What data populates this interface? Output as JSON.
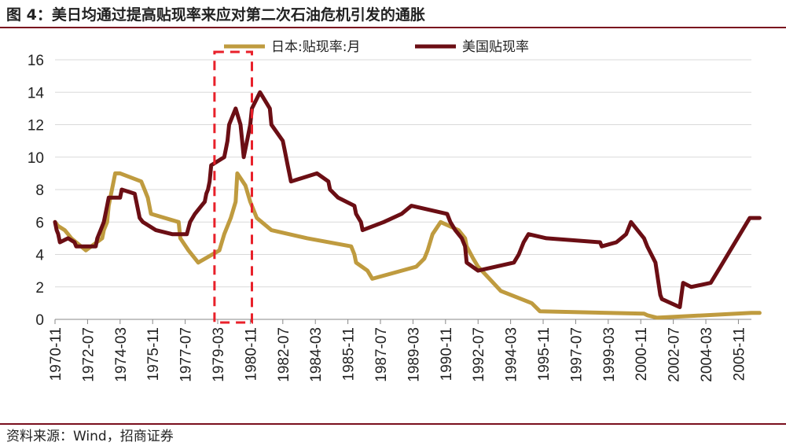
{
  "title": "图 4：美日均通过提高贴现率来应对第二次石油危机引发的通胀",
  "source": "资料来源：Wind，招商证券",
  "colors": {
    "japan": "#bf9b3f",
    "us": "#6b0e14",
    "highlight": "#e8202a",
    "rule": "#7a0f1e",
    "grid": "#d9d9d9"
  },
  "chart_data": {
    "type": "line",
    "title": "",
    "xlabel": "",
    "ylabel": "",
    "ylim": [
      0,
      16
    ],
    "yticks": [
      0,
      2,
      4,
      6,
      8,
      10,
      12,
      14,
      16
    ],
    "x_range": [
      1970.833,
      2006.5
    ],
    "x_tick_labels": [
      "1970-11",
      "1972-07",
      "1974-03",
      "1975-11",
      "1977-07",
      "1979-03",
      "1980-11",
      "1982-07",
      "1984-03",
      "1985-11",
      "1987-07",
      "1989-03",
      "1990-11",
      "1992-07",
      "1994-03",
      "1995-11",
      "1997-07",
      "1999-03",
      "2000-11",
      "2002-07",
      "2004-03",
      "2005-11"
    ],
    "grid": true,
    "legend": "top",
    "highlight_period": [
      "1979-01",
      "1980-12"
    ],
    "series": [
      {
        "name": "日本:贴现率:月",
        "color": "#bf9b3f",
        "x": [
          "1970-11",
          "1971-01",
          "1971-05",
          "1971-07",
          "1971-09",
          "1971-12",
          "1972-06",
          "1973-04",
          "1973-05",
          "1973-07",
          "1973-08",
          "1973-12",
          "1974-03",
          "1975-04",
          "1975-06",
          "1975-08",
          "1975-10",
          "1977-03",
          "1977-04",
          "1977-09",
          "1978-03",
          "1979-04",
          "1979-07",
          "1979-11",
          "1980-02",
          "1980-03",
          "1980-08",
          "1980-11",
          "1981-03",
          "1981-12",
          "1983-10",
          "1986-01",
          "1986-03",
          "1986-04",
          "1986-11",
          "1987-02",
          "1989-05",
          "1989-10",
          "1989-12",
          "1990-03",
          "1990-08",
          "1991-07",
          "1991-11",
          "1991-12",
          "1992-04",
          "1992-07",
          "1993-02",
          "1993-09",
          "1995-04",
          "1995-09",
          "2001-01",
          "2001-03",
          "2001-09",
          "2006-07",
          "2006-12"
        ],
        "values": [
          6.0,
          5.75,
          5.5,
          5.25,
          5.0,
          4.75,
          4.25,
          5.0,
          5.5,
          6.0,
          7.0,
          9.0,
          9.0,
          8.5,
          8.0,
          7.5,
          6.5,
          6.0,
          5.0,
          4.25,
          3.5,
          4.25,
          5.25,
          6.25,
          7.25,
          9.0,
          8.25,
          7.25,
          6.25,
          5.5,
          5.0,
          4.5,
          4.0,
          3.5,
          3.0,
          2.5,
          3.25,
          3.75,
          4.25,
          5.25,
          6.0,
          5.5,
          5.0,
          4.5,
          3.75,
          3.25,
          2.5,
          1.75,
          1.0,
          0.5,
          0.35,
          0.25,
          0.1,
          0.4,
          0.4
        ]
      },
      {
        "name": "美国贴现率",
        "color": "#6b0e14",
        "x": [
          "1970-11",
          "1970-12",
          "1971-01",
          "1971-02",
          "1971-07",
          "1971-11",
          "1971-12",
          "1972-12",
          "1973-01",
          "1973-03",
          "1973-05",
          "1973-07",
          "1973-08",
          "1974-03",
          "1974-04",
          "1974-12",
          "1975-01",
          "1975-02",
          "1975-03",
          "1975-05",
          "1976-01",
          "1976-11",
          "1977-08",
          "1977-10",
          "1978-01",
          "1978-05",
          "1978-07",
          "1978-08",
          "1978-09",
          "1978-10",
          "1978-11",
          "1979-07",
          "1979-08",
          "1979-09",
          "1979-10",
          "1980-02",
          "1980-05",
          "1980-06",
          "1980-07",
          "1980-09",
          "1980-11",
          "1980-12",
          "1981-05",
          "1981-11",
          "1981-12",
          "1982-07",
          "1982-08",
          "1982-10",
          "1982-11",
          "1982-12",
          "1984-04",
          "1984-11",
          "1984-12",
          "1985-05",
          "1986-03",
          "1986-04",
          "1986-07",
          "1986-08",
          "1987-09",
          "1988-08",
          "1989-02",
          "1990-12",
          "1991-02",
          "1991-05",
          "1991-09",
          "1991-11",
          "1991-12",
          "1992-07",
          "1994-05",
          "1994-08",
          "1994-11",
          "1995-02",
          "1996-01",
          "1998-10",
          "1998-11",
          "1999-08",
          "1999-11",
          "2000-02",
          "2000-03",
          "2000-05",
          "2001-01",
          "2001-03",
          "2001-08",
          "2001-11",
          "2001-12",
          "2002-11",
          "2003-01",
          "2003-06",
          "2004-06",
          "2004-12",
          "2005-06",
          "2005-12",
          "2006-06",
          "2006-12"
        ],
        "values": [
          6.0,
          5.5,
          5.25,
          4.75,
          5.0,
          4.75,
          4.5,
          4.5,
          5.0,
          5.5,
          6.0,
          7.0,
          7.5,
          7.5,
          8.0,
          7.75,
          7.25,
          6.75,
          6.25,
          6.0,
          5.5,
          5.25,
          5.25,
          6.0,
          6.5,
          7.0,
          7.25,
          7.75,
          8.0,
          8.5,
          9.5,
          10.0,
          10.5,
          11.0,
          12.0,
          13.0,
          12.0,
          11.0,
          10.0,
          11.0,
          12.0,
          13.0,
          14.0,
          13.0,
          12.0,
          11.0,
          10.5,
          9.5,
          9.0,
          8.5,
          9.0,
          8.5,
          8.0,
          7.5,
          7.0,
          6.5,
          6.0,
          5.5,
          6.0,
          6.5,
          7.0,
          6.5,
          6.0,
          5.5,
          5.0,
          4.5,
          3.5,
          3.0,
          3.5,
          4.0,
          4.75,
          5.25,
          5.0,
          4.75,
          4.5,
          4.75,
          5.0,
          5.25,
          5.5,
          6.0,
          5.0,
          4.5,
          3.5,
          1.5,
          1.25,
          0.75,
          2.25,
          2.0,
          2.25,
          3.25,
          4.25,
          5.25,
          6.25,
          6.25
        ]
      }
    ]
  }
}
